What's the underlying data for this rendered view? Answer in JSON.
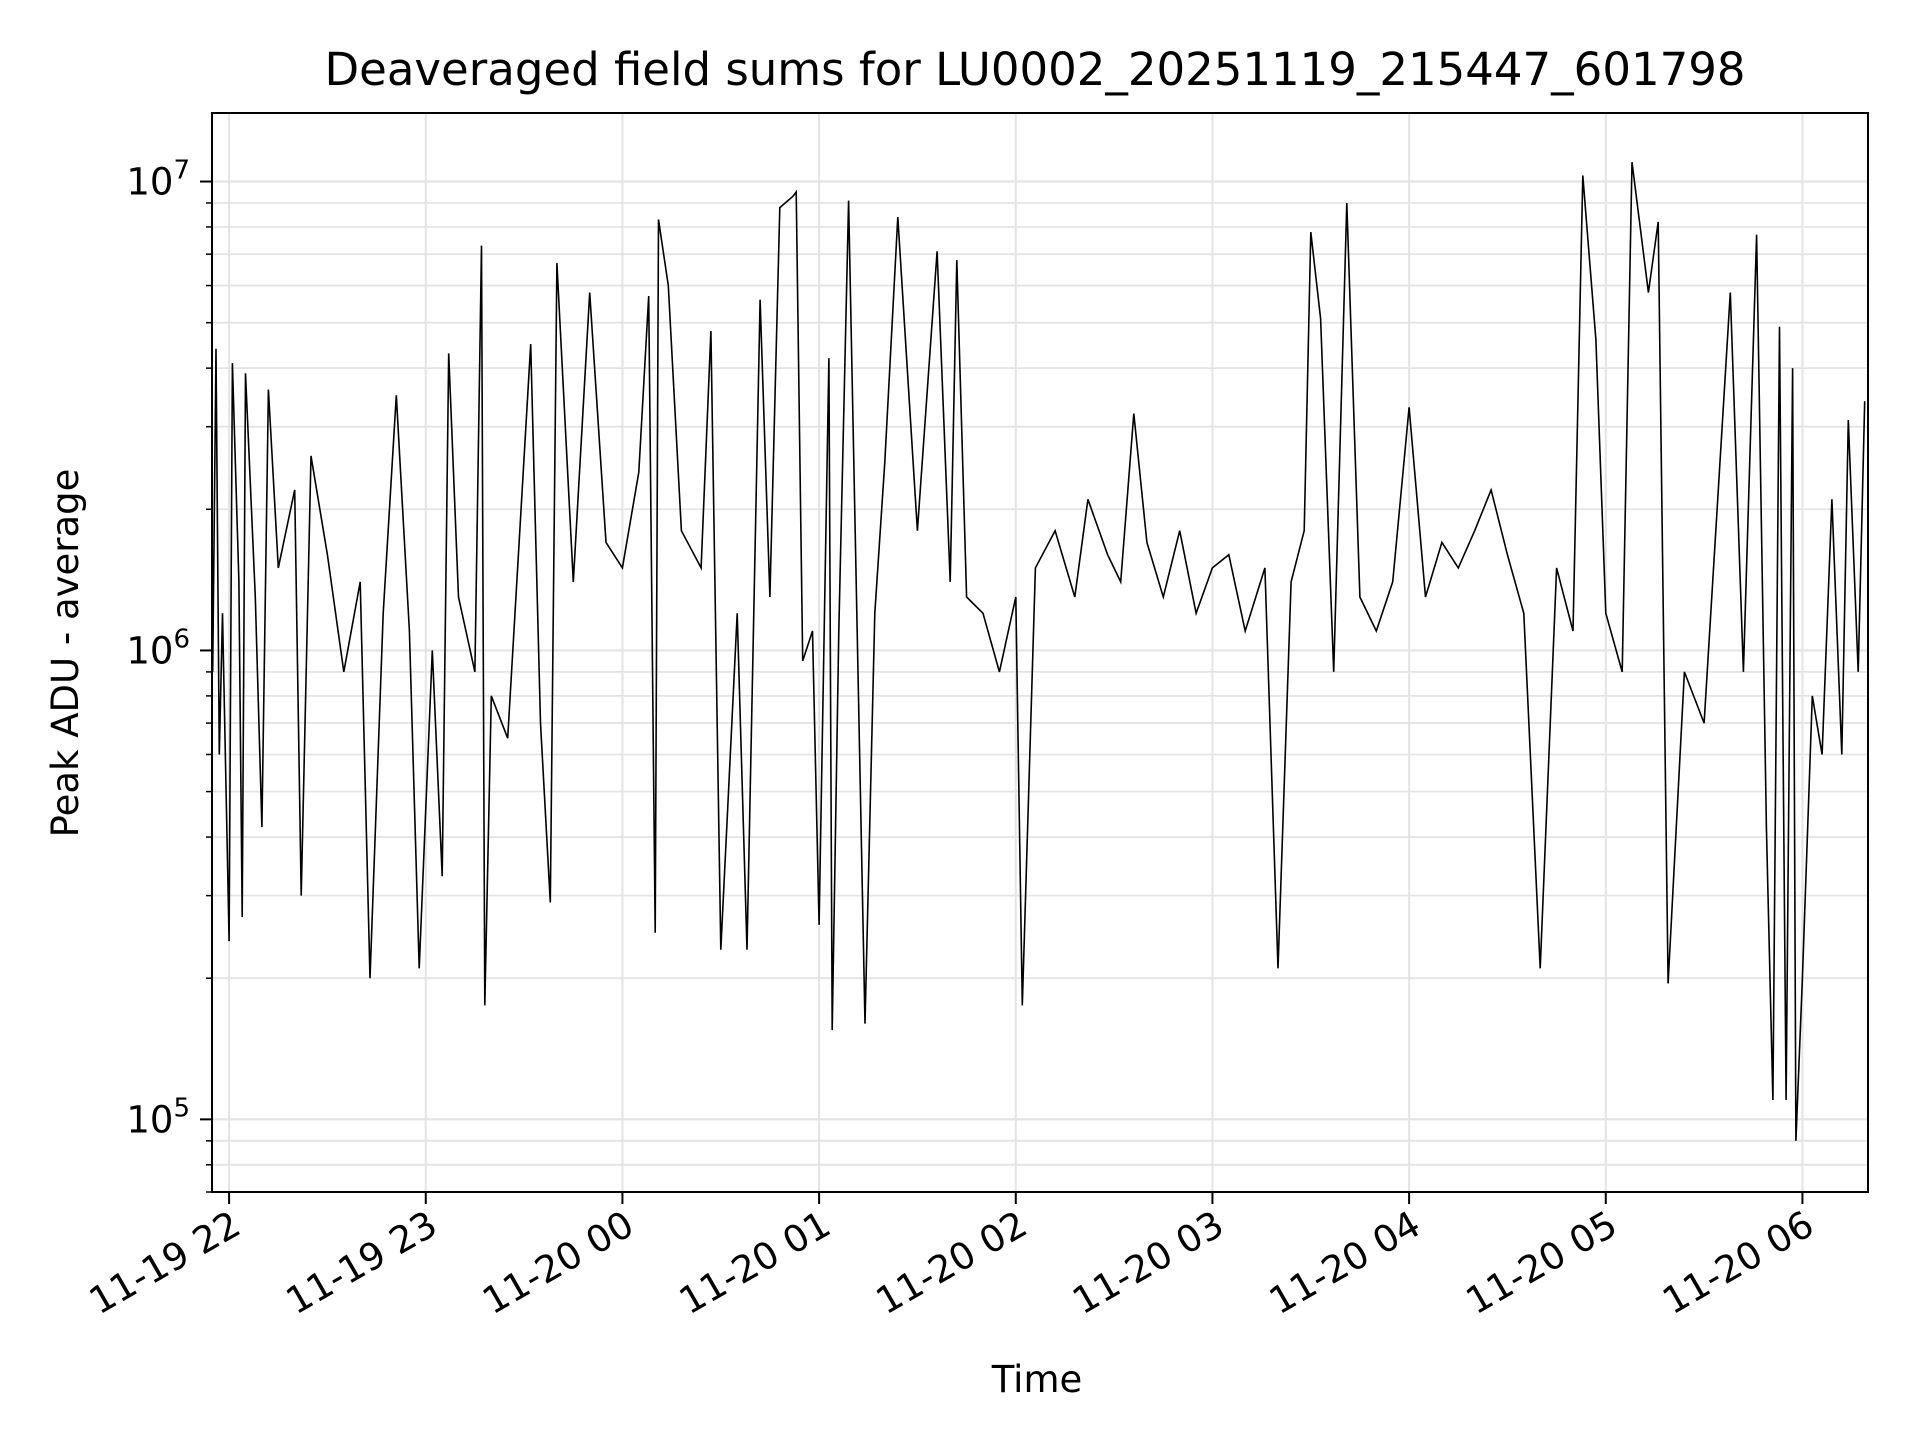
{
  "chart_data": {
    "type": "line",
    "title": "Deaveraged field sums for LU0002_20251119_215447_601798",
    "xlabel": "Time",
    "ylabel": "Peak ADU - average",
    "yscale": "log",
    "ylim": [
      70000,
      14000000
    ],
    "xlim": [
      "2025-11-19 21:54:47",
      "2025-11-20 06:20:00"
    ],
    "grid": true,
    "x_ticks": [
      "2025-11-19 22:00",
      "2025-11-19 23:00",
      "2025-11-20 00:00",
      "2025-11-20 01:00",
      "2025-11-20 02:00",
      "2025-11-20 03:00",
      "2025-11-20 04:00",
      "2025-11-20 05:00",
      "2025-11-20 06:00"
    ],
    "x_tick_labels": [
      "11-19 22",
      "11-19 23",
      "11-20 00",
      "11-20 01",
      "11-20 02",
      "11-20 03",
      "11-20 04",
      "11-20 05",
      "11-20 06"
    ],
    "y_ticks": [
      100000,
      1000000,
      10000000
    ],
    "line_color": "#000000",
    "series": [
      {
        "points": [
          [
            "2025-11-19 21:55",
            900000
          ],
          [
            "2025-11-19 21:56",
            4400000
          ],
          [
            "2025-11-19 21:57",
            600000
          ],
          [
            "2025-11-19 21:58",
            1200000
          ],
          [
            "2025-11-19 22:00",
            240000
          ],
          [
            "2025-11-19 22:01",
            4100000
          ],
          [
            "2025-11-19 22:03",
            1400000
          ],
          [
            "2025-11-19 22:04",
            270000
          ],
          [
            "2025-11-19 22:05",
            3900000
          ],
          [
            "2025-11-19 22:08",
            1300000
          ],
          [
            "2025-11-19 22:10",
            420000
          ],
          [
            "2025-11-19 22:12",
            3600000
          ],
          [
            "2025-11-19 22:15",
            1500000
          ],
          [
            "2025-11-19 22:20",
            2200000
          ],
          [
            "2025-11-19 22:22",
            300000
          ],
          [
            "2025-11-19 22:25",
            2600000
          ],
          [
            "2025-11-19 22:30",
            1600000
          ],
          [
            "2025-11-19 22:35",
            900000
          ],
          [
            "2025-11-19 22:40",
            1400000
          ],
          [
            "2025-11-19 22:43",
            200000
          ],
          [
            "2025-11-19 22:47",
            1200000
          ],
          [
            "2025-11-19 22:51",
            3500000
          ],
          [
            "2025-11-19 22:55",
            1100000
          ],
          [
            "2025-11-19 22:58",
            210000
          ],
          [
            "2025-11-19 23:02",
            1000000
          ],
          [
            "2025-11-19 23:05",
            330000
          ],
          [
            "2025-11-19 23:07",
            4300000
          ],
          [
            "2025-11-19 23:10",
            1300000
          ],
          [
            "2025-11-19 23:15",
            900000
          ],
          [
            "2025-11-19 23:17",
            7300000
          ],
          [
            "2025-11-19 23:18",
            175000
          ],
          [
            "2025-11-19 23:20",
            800000
          ],
          [
            "2025-11-19 23:25",
            650000
          ],
          [
            "2025-11-19 23:32",
            4500000
          ],
          [
            "2025-11-19 23:35",
            700000
          ],
          [
            "2025-11-19 23:38",
            290000
          ],
          [
            "2025-11-19 23:40",
            6700000
          ],
          [
            "2025-11-19 23:45",
            1400000
          ],
          [
            "2025-11-19 23:50",
            5800000
          ],
          [
            "2025-11-19 23:55",
            1700000
          ],
          [
            "2025-11-20 00:00",
            1500000
          ],
          [
            "2025-11-20 00:05",
            2400000
          ],
          [
            "2025-11-20 00:08",
            5700000
          ],
          [
            "2025-11-20 00:10",
            250000
          ],
          [
            "2025-11-20 00:11",
            8300000
          ],
          [
            "2025-11-20 00:14",
            6000000
          ],
          [
            "2025-11-20 00:18",
            1800000
          ],
          [
            "2025-11-20 00:24",
            1500000
          ],
          [
            "2025-11-20 00:27",
            4800000
          ],
          [
            "2025-11-20 00:30",
            230000
          ],
          [
            "2025-11-20 00:35",
            1200000
          ],
          [
            "2025-11-20 00:38",
            230000
          ],
          [
            "2025-11-20 00:42",
            5600000
          ],
          [
            "2025-11-20 00:45",
            1300000
          ],
          [
            "2025-11-20 00:48",
            8800000
          ],
          [
            "2025-11-20 00:52",
            9300000
          ],
          [
            "2025-11-20 00:53",
            9500000
          ],
          [
            "2025-11-20 00:55",
            950000
          ],
          [
            "2025-11-20 00:58",
            1100000
          ],
          [
            "2025-11-20 01:00",
            260000
          ],
          [
            "2025-11-20 01:03",
            4200000
          ],
          [
            "2025-11-20 01:04",
            155000
          ],
          [
            "2025-11-20 01:06",
            1100000
          ],
          [
            "2025-11-20 01:09",
            9100000
          ],
          [
            "2025-11-20 01:14",
            160000
          ],
          [
            "2025-11-20 01:17",
            1200000
          ],
          [
            "2025-11-20 01:20",
            2500000
          ],
          [
            "2025-11-20 01:24",
            8400000
          ],
          [
            "2025-11-20 01:30",
            1800000
          ],
          [
            "2025-11-20 01:36",
            7100000
          ],
          [
            "2025-11-20 01:40",
            1400000
          ],
          [
            "2025-11-20 01:42",
            6800000
          ],
          [
            "2025-11-20 01:45",
            1300000
          ],
          [
            "2025-11-20 01:50",
            1200000
          ],
          [
            "2025-11-20 01:55",
            900000
          ],
          [
            "2025-11-20 02:00",
            1300000
          ],
          [
            "2025-11-20 02:02",
            175000
          ],
          [
            "2025-11-20 02:06",
            1500000
          ],
          [
            "2025-11-20 02:12",
            1800000
          ],
          [
            "2025-11-20 02:18",
            1300000
          ],
          [
            "2025-11-20 02:22",
            2100000
          ],
          [
            "2025-11-20 02:28",
            1600000
          ],
          [
            "2025-11-20 02:32",
            1400000
          ],
          [
            "2025-11-20 02:36",
            3200000
          ],
          [
            "2025-11-20 02:40",
            1700000
          ],
          [
            "2025-11-20 02:45",
            1300000
          ],
          [
            "2025-11-20 02:50",
            1800000
          ],
          [
            "2025-11-20 02:55",
            1200000
          ],
          [
            "2025-11-20 03:00",
            1500000
          ],
          [
            "2025-11-20 03:05",
            1600000
          ],
          [
            "2025-11-20 03:10",
            1100000
          ],
          [
            "2025-11-20 03:16",
            1500000
          ],
          [
            "2025-11-20 03:20",
            210000
          ],
          [
            "2025-11-20 03:24",
            1400000
          ],
          [
            "2025-11-20 03:28",
            1800000
          ],
          [
            "2025-11-20 03:30",
            7800000
          ],
          [
            "2025-11-20 03:33",
            5100000
          ],
          [
            "2025-11-20 03:37",
            900000
          ],
          [
            "2025-11-20 03:41",
            9000000
          ],
          [
            "2025-11-20 03:45",
            1300000
          ],
          [
            "2025-11-20 03:50",
            1100000
          ],
          [
            "2025-11-20 03:55",
            1400000
          ],
          [
            "2025-11-20 04:00",
            3300000
          ],
          [
            "2025-11-20 04:05",
            1300000
          ],
          [
            "2025-11-20 04:10",
            1700000
          ],
          [
            "2025-11-20 04:15",
            1500000
          ],
          [
            "2025-11-20 04:20",
            1800000
          ],
          [
            "2025-11-20 04:25",
            2200000
          ],
          [
            "2025-11-20 04:30",
            1600000
          ],
          [
            "2025-11-20 04:35",
            1200000
          ],
          [
            "2025-11-20 04:40",
            210000
          ],
          [
            "2025-11-20 04:45",
            1500000
          ],
          [
            "2025-11-20 04:50",
            1100000
          ],
          [
            "2025-11-20 04:53",
            10300000
          ],
          [
            "2025-11-20 04:57",
            4600000
          ],
          [
            "2025-11-20 05:00",
            1200000
          ],
          [
            "2025-11-20 05:05",
            900000
          ],
          [
            "2025-11-20 05:08",
            11000000
          ],
          [
            "2025-11-20 05:13",
            5800000
          ],
          [
            "2025-11-20 05:16",
            8200000
          ],
          [
            "2025-11-20 05:19",
            195000
          ],
          [
            "2025-11-20 05:24",
            900000
          ],
          [
            "2025-11-20 05:30",
            700000
          ],
          [
            "2025-11-20 05:38",
            5800000
          ],
          [
            "2025-11-20 05:42",
            900000
          ],
          [
            "2025-11-20 05:46",
            7700000
          ],
          [
            "2025-11-20 05:49",
            420000
          ],
          [
            "2025-11-20 05:51",
            110000
          ],
          [
            "2025-11-20 05:53",
            4900000
          ],
          [
            "2025-11-20 05:55",
            110000
          ],
          [
            "2025-11-20 05:57",
            4000000
          ],
          [
            "2025-11-20 05:58",
            90000
          ],
          [
            "2025-11-20 06:00",
            200000
          ],
          [
            "2025-11-20 06:03",
            800000
          ],
          [
            "2025-11-20 06:06",
            600000
          ],
          [
            "2025-11-20 06:09",
            2100000
          ],
          [
            "2025-11-20 06:12",
            600000
          ],
          [
            "2025-11-20 06:14",
            3100000
          ],
          [
            "2025-11-20 06:17",
            900000
          ],
          [
            "2025-11-20 06:19",
            3400000
          ]
        ]
      }
    ]
  }
}
